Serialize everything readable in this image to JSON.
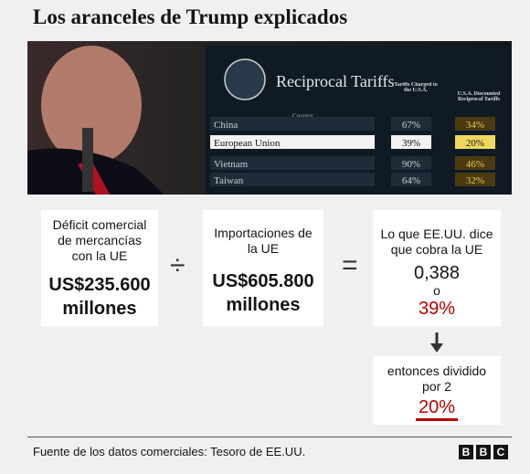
{
  "title": "Los aranceles de Trump explicados",
  "photo": {
    "heading": "Reciprocal Tariffs",
    "column_labels": [
      "Country",
      "Tariffs Charged to the U.S.A.",
      "U.S.A. Discounted Reciprocal Tariffs"
    ],
    "rows": [
      [
        "China",
        "67%",
        "34%"
      ],
      [
        "European Union",
        "39%",
        "20%"
      ],
      [
        "Vietnam",
        "90%",
        "46%"
      ],
      [
        "Taiwan",
        "64%",
        "32%"
      ]
    ]
  },
  "boxes": [
    {
      "label": "Déficit comercial de mercancías con la UE",
      "amount": "US$235.600 millones"
    },
    {
      "label": "Importaciones de la UE",
      "amount": "US$605.800 millones"
    },
    {
      "label": "Lo que EE.UU. dice que cobra la UE",
      "value": "0,388",
      "connector": "o",
      "percent": "39%"
    },
    {
      "label": "entonces dividido por 2",
      "percent": "20%"
    }
  ],
  "operators": [
    "÷",
    "="
  ],
  "footer": {
    "source": "Fuente de los datos comerciales: Tesoro de EE.UU.",
    "logo": [
      "B",
      "B",
      "C"
    ]
  }
}
